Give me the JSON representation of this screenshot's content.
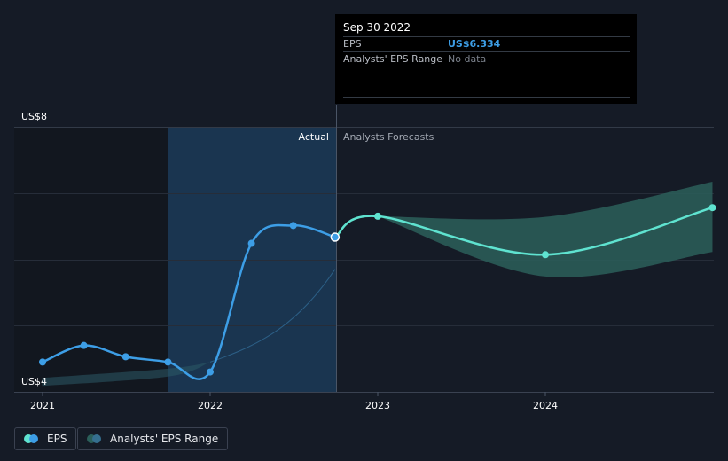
{
  "chart_data": {
    "type": "line",
    "y_label_top": "US$8",
    "y_label_bottom": "US$4",
    "ylim": [
      4,
      8
    ],
    "x_ticks": [
      "2021",
      "2022",
      "2023",
      "2024"
    ],
    "region_labels": {
      "actual": "Actual",
      "forecast": "Analysts Forecasts"
    },
    "series": [
      {
        "name": "EPS",
        "color": "#3d9ee6",
        "points": [
          [
            "2021-01-01",
            4.45
          ],
          [
            "2021-04-01",
            4.7
          ],
          [
            "2021-07-01",
            4.53
          ],
          [
            "2021-10-01",
            4.45
          ],
          [
            "2022-01-01",
            4.3
          ],
          [
            "2022-04-01",
            6.24
          ],
          [
            "2022-07-01",
            6.51
          ],
          [
            "2022-09-30",
            6.334
          ]
        ]
      },
      {
        "name": "EPS forecast",
        "color": "#5fe3d0",
        "points": [
          [
            "2022-09-30",
            6.334
          ],
          [
            "2023-01-01",
            6.65
          ],
          [
            "2024-01-01",
            6.07
          ],
          [
            "2024-12-31",
            6.78
          ]
        ]
      }
    ],
    "forecast_range": {
      "upper": [
        [
          "2023-01-01",
          6.65
        ],
        [
          "2024-01-01",
          6.64
        ],
        [
          "2024-12-31",
          7.17
        ]
      ],
      "lower": [
        [
          "2023-01-01",
          6.65
        ],
        [
          "2024-01-01",
          5.74
        ],
        [
          "2024-12-31",
          6.11
        ]
      ]
    },
    "baseline_band": {
      "upper": [
        [
          "2020-12-31",
          4.21
        ],
        [
          "2021-10-01",
          4.35
        ],
        [
          "2022-01-01",
          4.45
        ]
      ],
      "lower": [
        [
          "2020-12-31",
          4.09
        ],
        [
          "2021-10-01",
          4.23
        ],
        [
          "2022-01-01",
          4.45
        ]
      ]
    },
    "legend": [
      "EPS",
      "Analysts' EPS Range"
    ],
    "grid": true
  },
  "tooltip": {
    "date": "Sep 30 2022",
    "eps_label": "EPS",
    "eps_value": "US$6.334",
    "range_label": "Analysts' EPS Range",
    "range_value": "No data"
  },
  "legend": {
    "eps": "EPS",
    "range": "Analysts' EPS Range"
  },
  "colors": {
    "background": "#151b26",
    "eps": "#3d9ee6",
    "forecast": "#5fe3d0",
    "range_fill": "#2b5f5a",
    "highlight": "#1b3a58"
  }
}
